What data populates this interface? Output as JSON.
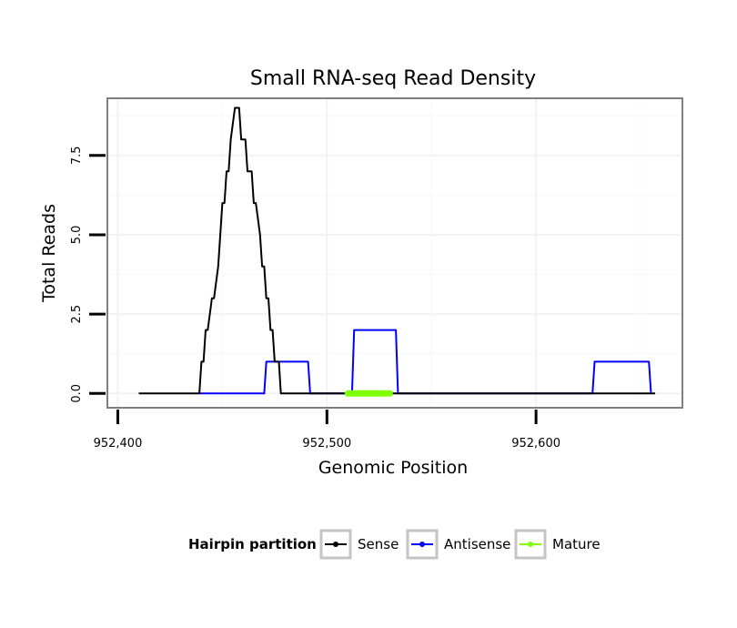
{
  "chart_data": {
    "type": "line",
    "title": "Small RNA-seq Read Density",
    "xlabel": "Genomic Position",
    "ylabel": "Total Reads",
    "xlim": [
      952395,
      952670
    ],
    "ylim": [
      -0.45,
      9.3
    ],
    "x_ticks": [
      952400,
      952500,
      952600
    ],
    "x_tick_labels": [
      "952,400",
      "952,500",
      "952,600"
    ],
    "y_ticks": [
      0.0,
      2.5,
      5.0,
      7.5
    ],
    "y_tick_labels": [
      "0.0",
      "2.5",
      "5.0",
      "7.5"
    ],
    "grid": true,
    "legend": {
      "title": "Hairpin partition",
      "position": "bottom",
      "entries": [
        {
          "name": "Sense",
          "color": "#000000"
        },
        {
          "name": "Antisense",
          "color": "#0000ff"
        },
        {
          "name": "Mature",
          "color": "#7fff00"
        }
      ]
    },
    "series": [
      {
        "name": "Sense",
        "color": "#000000",
        "x": [
          952410,
          952439,
          952440,
          952441,
          952442,
          952443,
          952445,
          952446,
          952448,
          952449,
          952450,
          952451,
          952452,
          952453,
          952454,
          952456,
          952457,
          952458,
          952459,
          952461,
          952462,
          952464,
          952465,
          952466,
          952468,
          952469,
          952470,
          952471,
          952472,
          952473,
          952474,
          952475,
          952476,
          952477,
          952478,
          952480,
          952481,
          952510,
          952530,
          952657
        ],
        "values": [
          0,
          0,
          1,
          1,
          2,
          2,
          3,
          3,
          4,
          5,
          6,
          6,
          7,
          7,
          8,
          9,
          9,
          9,
          8,
          8,
          7,
          7,
          6,
          6,
          5,
          4,
          4,
          3,
          3,
          2,
          2,
          1,
          1,
          1,
          0,
          0,
          0,
          0,
          0,
          0
        ]
      },
      {
        "name": "Antisense",
        "color": "#0000ff",
        "x": [
          952439,
          952470,
          952471,
          952491,
          952492,
          952512,
          952513,
          952533,
          952534,
          952627,
          952628,
          952654,
          952655
        ],
        "values": [
          0,
          0,
          1,
          1,
          0,
          0,
          2,
          2,
          0,
          0,
          1,
          1,
          0
        ]
      },
      {
        "name": "Mature",
        "color": "#7fff00",
        "x": [
          952510,
          952530
        ],
        "values": [
          0,
          0
        ]
      }
    ]
  }
}
